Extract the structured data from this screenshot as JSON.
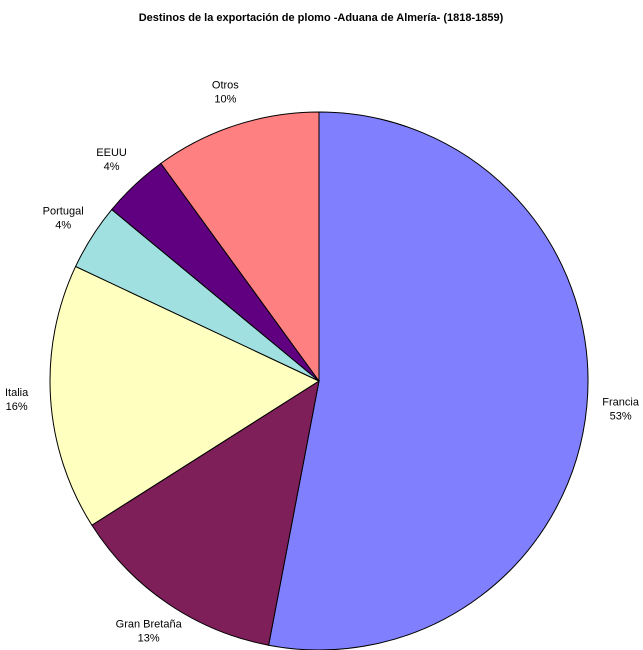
{
  "chart_data": {
    "type": "pie",
    "title": "Destinos de la exportación de plomo -Aduana de Almería- (1818-1859)",
    "categories": [
      "Francia",
      "Gran Bretaña",
      "Italia",
      "Portugal",
      "EEUU",
      "Otros"
    ],
    "values": [
      53,
      13,
      16,
      4,
      4,
      10
    ],
    "value_labels": [
      "53%",
      "13%",
      "16%",
      "4%",
      "4%",
      "10%"
    ],
    "colors": [
      "#8080ff",
      "#7f1f5a",
      "#ffffc0",
      "#a0e0e0",
      "#600080",
      "#ff8080"
    ]
  }
}
